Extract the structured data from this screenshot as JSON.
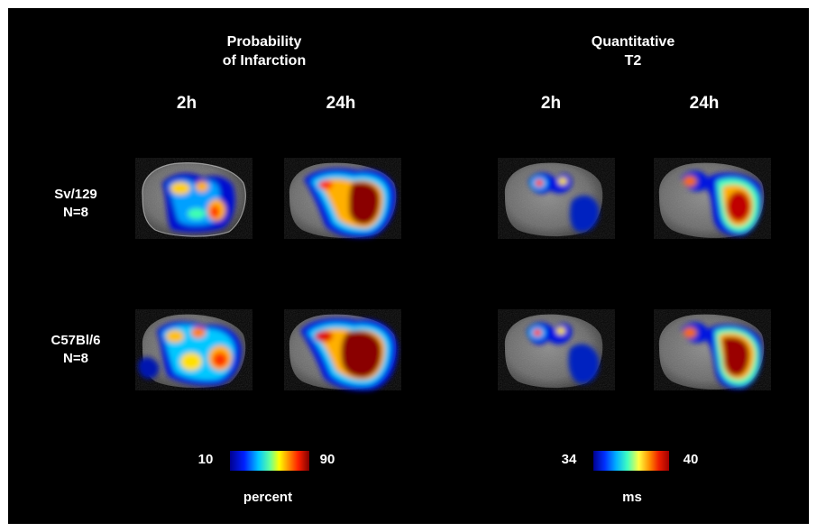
{
  "groups": [
    {
      "title_line1": "Probability",
      "title_line2": "of Infarction",
      "times": [
        "2h",
        "24h"
      ]
    },
    {
      "title_line1": "Quantitative",
      "title_line2": "T2",
      "times": [
        "2h",
        "24h"
      ]
    }
  ],
  "rows": [
    {
      "strain": "Sv/129",
      "n": "N=8"
    },
    {
      "strain": "C57Bl/6",
      "n": "N=8"
    }
  ],
  "colorbars": [
    {
      "min": "10",
      "max": "90",
      "unit": "percent"
    },
    {
      "min": "34",
      "max": "40",
      "unit": "ms"
    }
  ]
}
